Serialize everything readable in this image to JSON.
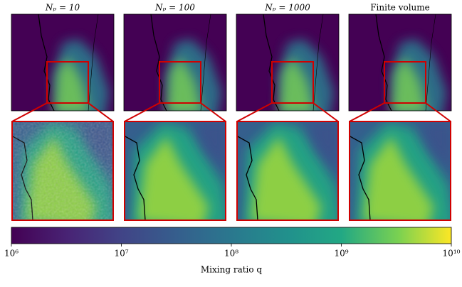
{
  "chart_data": {
    "type": "heatmap",
    "panels": [
      "Nₚ = 10",
      "Nₚ = 100",
      "Nₚ = 1000",
      "Finite volume"
    ],
    "colormap": "viridis",
    "log_scale": true,
    "colorbar_label": "Mixing ratio q",
    "clim": [
      1000000,
      10000000000
    ],
    "cticks": [
      {
        "value": 1000000,
        "label": "10⁶"
      },
      {
        "value": 10000000,
        "label": "10⁷"
      },
      {
        "value": 100000000,
        "label": "10⁸"
      },
      {
        "value": 1000000000,
        "label": "10⁹"
      },
      {
        "value": 10000000000,
        "label": "10¹⁰"
      }
    ]
  }
}
